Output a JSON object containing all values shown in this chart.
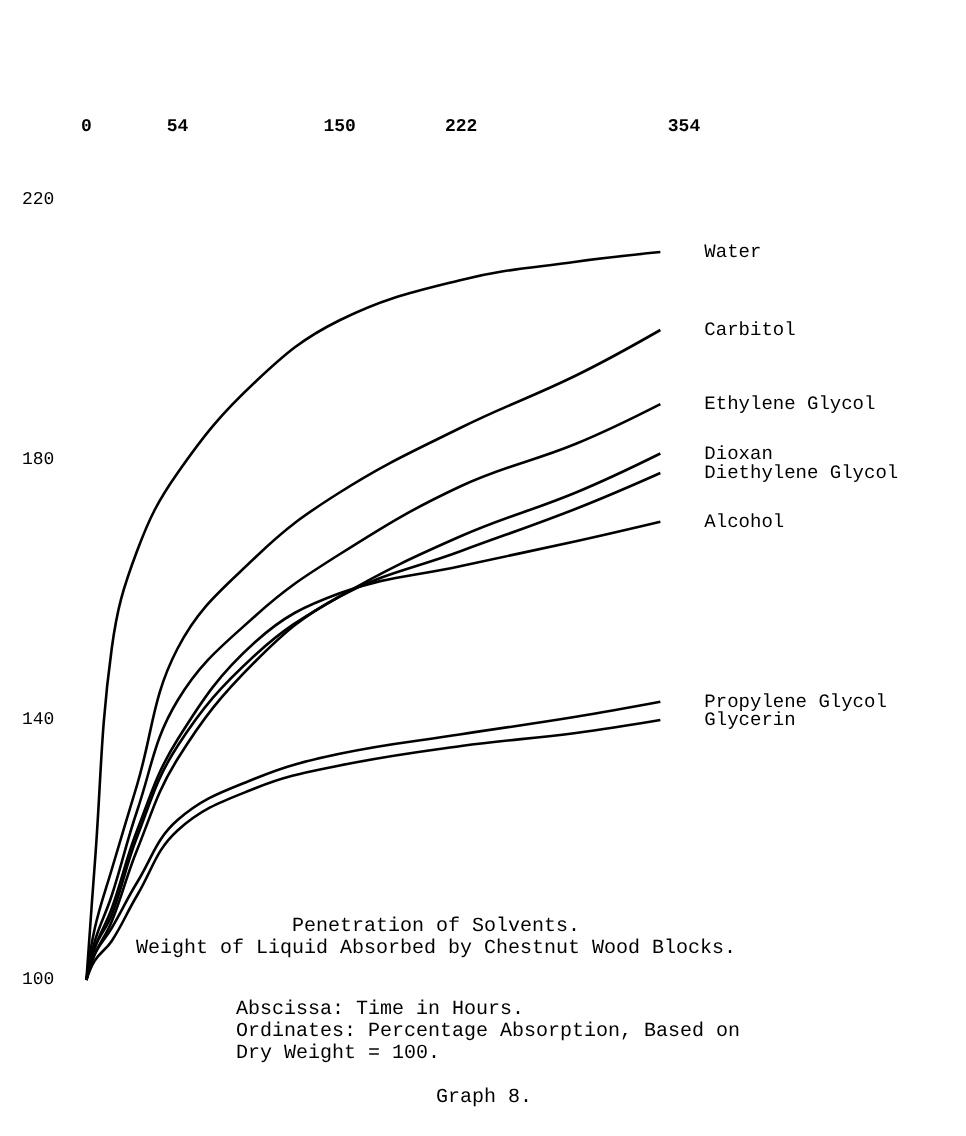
{
  "chart_data": {
    "type": "line",
    "title": "Penetration of Solvents.",
    "subtitle": "Weight of Liquid Absorbed by Chestnut Wood Blocks.",
    "annotations": [
      "Abscissa: Time in Hours.",
      "Ordinates: Percentage Absorption, Based on Dry Weight = 100.",
      "Graph 8."
    ],
    "x": [
      0,
      5,
      15,
      30,
      54,
      100,
      150,
      222,
      290,
      340
    ],
    "xlim": [
      0,
      354
    ],
    "xticks": [
      0,
      54,
      150,
      222,
      354
    ],
    "ylim": [
      100,
      220
    ],
    "yticks": [
      100,
      140,
      180,
      220
    ],
    "grid": false,
    "legend": false,
    "series": [
      {
        "name": "Water",
        "color": "#000000",
        "values": [
          100,
          118,
          151,
          166,
          178,
          192,
          201.5,
          207.7,
          210.5,
          212
        ]
      },
      {
        "name": "Carbitol",
        "color": "#000000",
        "values": [
          100,
          108,
          117,
          130,
          151,
          165,
          175,
          185,
          193,
          200
        ]
      },
      {
        "name": "Ethylene Glycol",
        "color": "#000000",
        "values": [
          100,
          106,
          113,
          126,
          143,
          156,
          165.5,
          176,
          182.5,
          188.6
        ]
      },
      {
        "name": "Dioxan",
        "color": "#000000",
        "values": [
          100,
          105,
          110,
          122,
          136,
          150,
          159,
          168.3,
          175,
          181
        ]
      },
      {
        "name": "Diethylene Glycol",
        "color": "#000000",
        "values": [
          100,
          104,
          109,
          120,
          134,
          149,
          159,
          166,
          172.5,
          178
        ]
      },
      {
        "name": "Alcohol",
        "color": "#000000",
        "values": [
          100,
          105,
          111,
          123,
          137,
          152,
          159.5,
          163.7,
          167.5,
          170.5
        ]
      },
      {
        "name": "Propylene Glycol",
        "color": "#000000",
        "values": [
          100,
          104,
          108,
          115,
          124.6,
          131,
          134.8,
          137.8,
          140.5,
          142.8
        ]
      },
      {
        "name": "Glycerin",
        "color": "#000000",
        "values": [
          100,
          103,
          106,
          113,
          123,
          129.5,
          133,
          136,
          138,
          140
        ]
      }
    ]
  }
}
